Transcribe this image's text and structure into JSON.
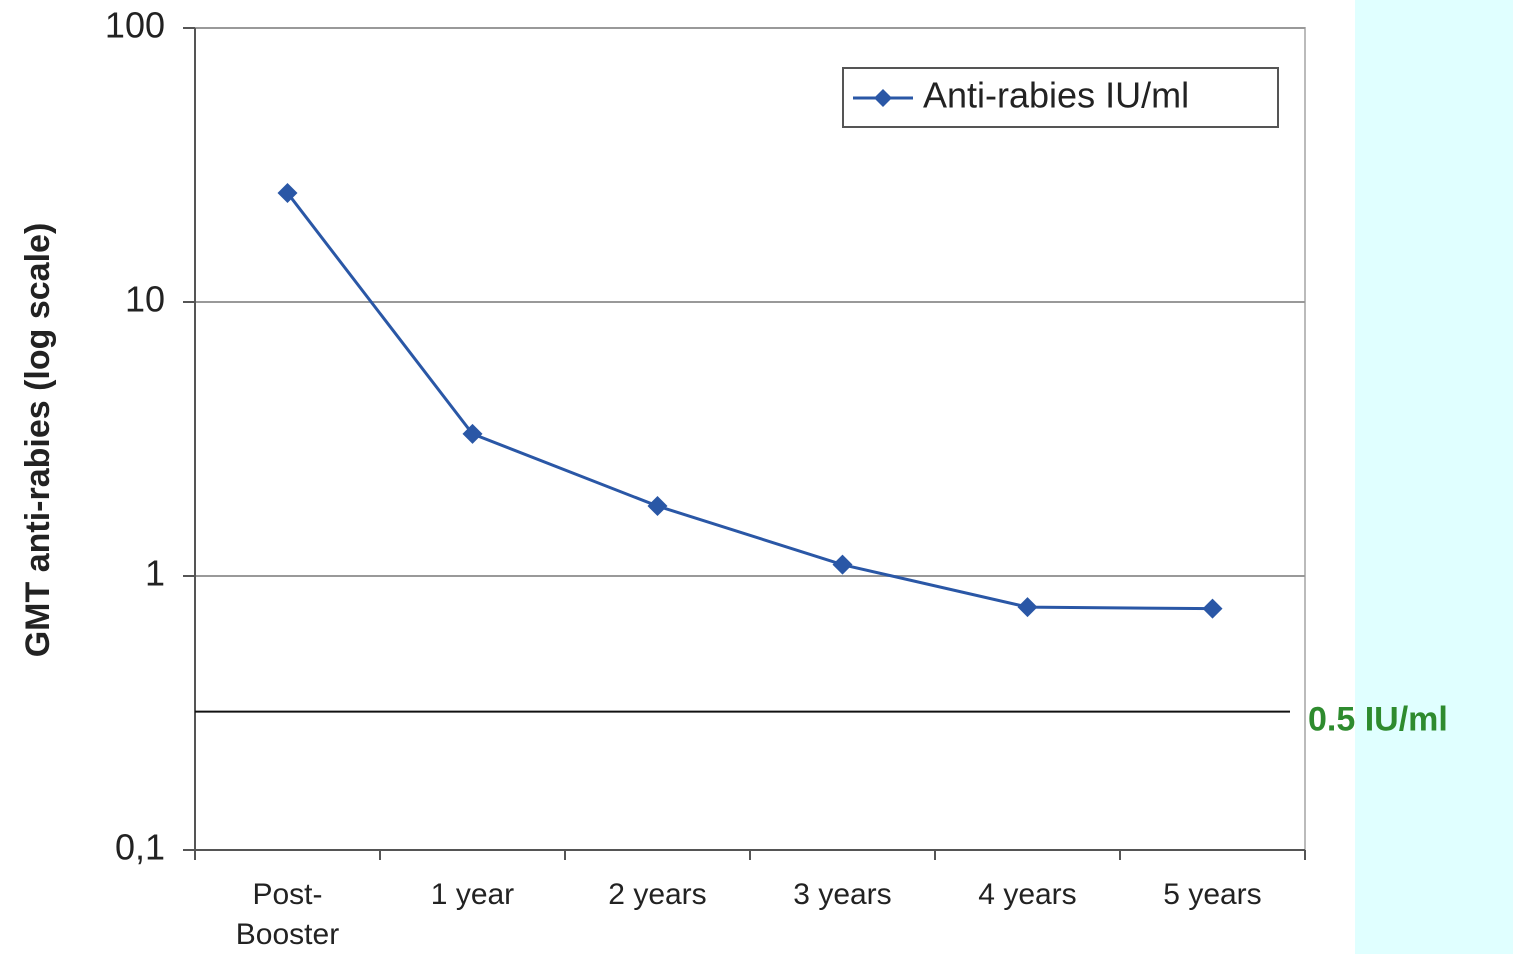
{
  "chart_data": {
    "type": "line",
    "y_label": "GMT anti-rabies (log scale)",
    "categories": [
      "Post-\nBooster",
      "1 year",
      "2 years",
      "3 years",
      "4 years",
      "5 years"
    ],
    "series": [
      {
        "name": "Anti-rabies IU/ml",
        "color": "#2a57a6",
        "values": [
          25,
          3.3,
          1.8,
          1.1,
          0.77,
          0.76
        ]
      }
    ],
    "ylim": [
      0.1,
      100
    ],
    "yticks": [
      {
        "value": 0.1,
        "label": "0,1"
      },
      1,
      10,
      100
    ],
    "log_scale": true,
    "grid": true,
    "legend": "top-right",
    "annotations": [
      {
        "text": "0.5 IU/ml",
        "y": 0.32,
        "color": "#2e8b2e"
      }
    ]
  }
}
